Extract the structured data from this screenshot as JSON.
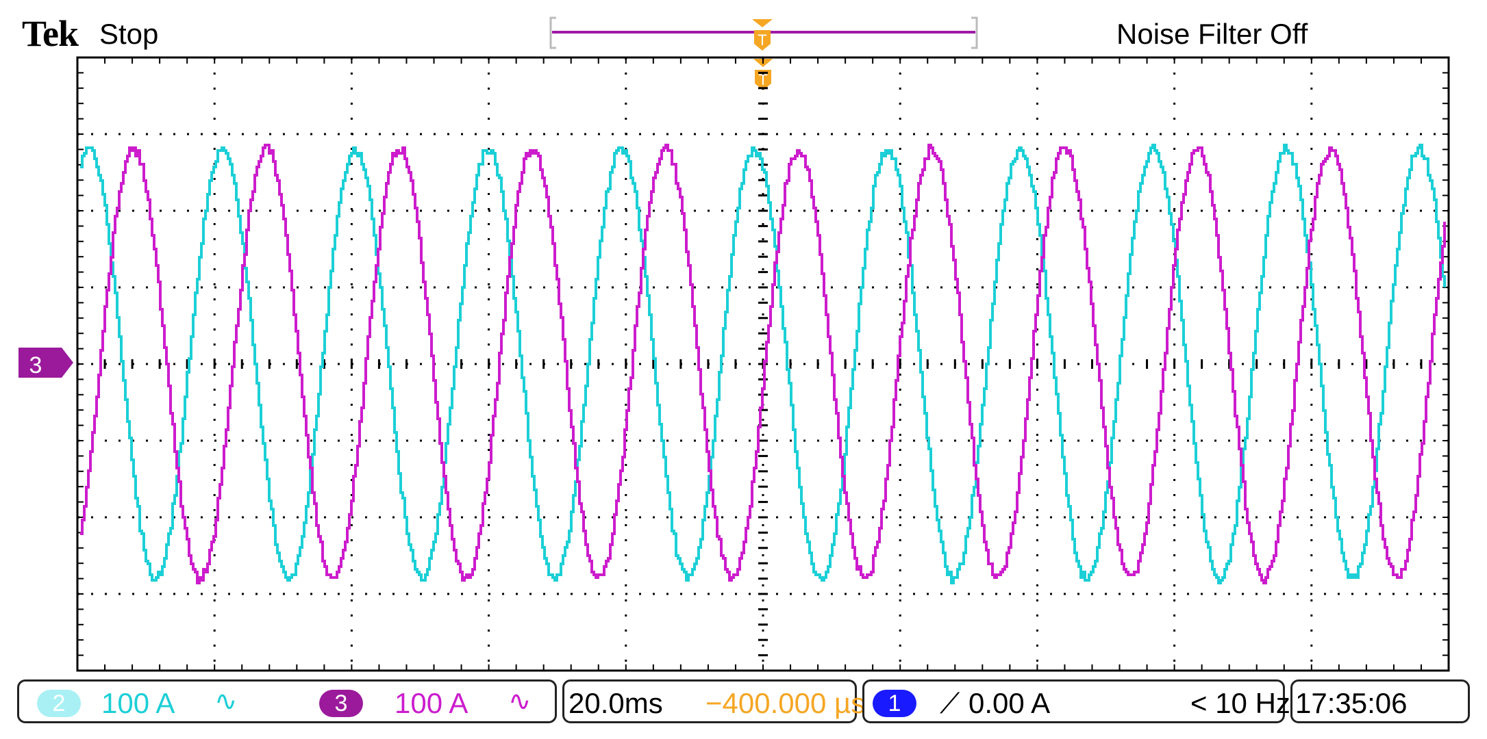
{
  "header": {
    "brand": "Tek",
    "acquisition_state": "Stop",
    "noise_filter": "Noise Filter Off"
  },
  "colors": {
    "ch2": "#1ccfd6",
    "ch3": "#cc1ccc",
    "ch3_marker": "#9b1a9b",
    "trigger_marker": "#f5a623",
    "ch1_badge": "#1a1aff",
    "ch2_badge": "#a8f0f4",
    "ch3_badge": "#9b1a9b",
    "trigger_position_text": "#f5a623"
  },
  "channel_marker": {
    "label": "3"
  },
  "status_bar": {
    "ch2": {
      "badge": "2",
      "scale": "100 A",
      "coupling_icon": "ac-coupling-icon",
      "coupling_glyph": "∿"
    },
    "ch3": {
      "badge": "3",
      "scale": "100 A",
      "coupling_icon": "ac-coupling-icon",
      "coupling_glyph": "∿"
    },
    "timebase": {
      "scale": "20.0ms",
      "position": "−400.000 µs"
    },
    "trigger": {
      "source_badge": "1",
      "slope_icon": "rising-edge-icon",
      "slope_glyph": "⟋",
      "level": "0.00 A",
      "frequency": "< 10 Hz"
    },
    "clock": "17:35:06"
  },
  "waveforms": {
    "ch2": {
      "name": "Channel 2 current",
      "amplitude_divisions": 2.8,
      "period_divisions": 0.97,
      "phase_deg": 60
    },
    "ch3": {
      "name": "Channel 3 current",
      "amplitude_divisions": 2.8,
      "period_divisions": 0.97,
      "phase_deg": -60
    }
  }
}
